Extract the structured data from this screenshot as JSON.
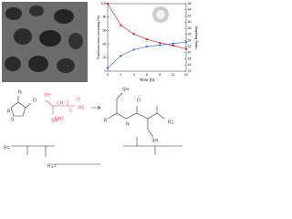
{
  "chart_data": {
    "type": "line",
    "x_label": "Time (h)",
    "y_label": "Fractional mass remaining (%)",
    "y2_label": "Swelling Ratio",
    "categories": [
      "0",
      "2",
      "4",
      "6",
      "8",
      "12",
      "24"
    ],
    "series": [
      {
        "name": "Fractional mass remaining",
        "color": "#d62728",
        "values": [
          100,
          68,
          55,
          47,
          42,
          38,
          33
        ]
      },
      {
        "name": "Swelling Ratio",
        "color": "#4a6fd1",
        "axis": "y2",
        "values": [
          15,
          19,
          21,
          22,
          22.5,
          23,
          23.5
        ]
      }
    ],
    "ylim": [
      0,
      100
    ],
    "yticks": [
      0,
      20,
      40,
      60,
      80,
      100
    ],
    "y2lim": [
      14,
      36
    ],
    "y2ticks": [
      14,
      16,
      18,
      20,
      22,
      24,
      26,
      28,
      30,
      32,
      34,
      36
    ]
  },
  "scheme": {
    "labels": [
      "R",
      "N",
      "O",
      "S",
      "O",
      "R1",
      "SH",
      "NH2",
      "CH",
      "C",
      "SH",
      "R",
      "N",
      "O",
      "R1",
      "SH",
      "SH",
      "R=",
      "R1="
    ]
  }
}
